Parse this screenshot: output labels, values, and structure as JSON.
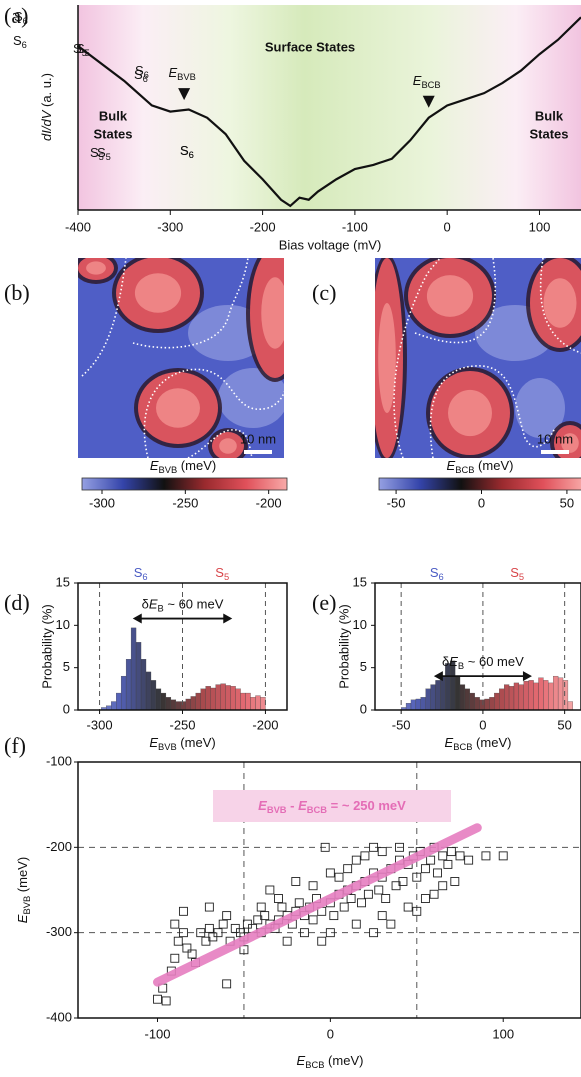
{
  "chart_data": [
    {
      "type": "line",
      "panel": "(a)",
      "x": [
        -400,
        -350,
        -320,
        -300,
        -280,
        -260,
        -240,
        -220,
        -200,
        -180,
        -170,
        -160,
        -150,
        -140,
        -120,
        -100,
        -80,
        -60,
        -40,
        -20,
        0,
        20,
        40,
        60,
        80,
        100,
        120,
        145
      ],
      "values": [
        0.8,
        0.63,
        0.51,
        0.48,
        0.49,
        0.45,
        0.37,
        0.24,
        0.15,
        0.05,
        0.02,
        0.06,
        0.05,
        0.09,
        0.15,
        0.2,
        0.22,
        0.25,
        0.34,
        0.45,
        0.51,
        0.54,
        0.57,
        0.62,
        0.68,
        0.76,
        0.83,
        0.94
      ],
      "color": "#111111",
      "xlim": [
        -400,
        145
      ],
      "ylim": [
        0,
        1
      ],
      "xticks": [
        -400,
        -300,
        -200,
        -100,
        0,
        100
      ],
      "xlabel": "Bias voltage (mV)",
      "ylabel": [
        {
          "i": "dI/dV"
        },
        {
          "t": " (a. u.)"
        }
      ],
      "surface_label": "Surface States",
      "bulk_label_left": [
        "Bulk",
        "States"
      ],
      "bulk_label_right": [
        "Bulk",
        "States"
      ],
      "markers": [
        {
          "x": -285,
          "label": [
            {
              "i": "E"
            },
            {
              "sub": "BVB"
            }
          ]
        },
        {
          "x": -20,
          "label": [
            {
              "i": "E"
            },
            {
              "sub": "BCB"
            }
          ]
        }
      ]
    },
    {
      "type": "map",
      "panel": "(b)",
      "labels": [
        [
          {
            "t": "S"
          },
          {
            "sub": "6"
          }
        ],
        [
          {
            "t": "S"
          },
          {
            "sub": "5"
          }
        ],
        [
          {
            "t": "S"
          },
          {
            "sub": "6"
          }
        ],
        [
          {
            "t": "S"
          },
          {
            "sub": "5"
          }
        ],
        [
          {
            "t": "S"
          },
          {
            "sub": "6"
          }
        ]
      ],
      "scalebar": "10 nm",
      "colorbar_label": [
        {
          "i": "E"
        },
        {
          "sub": "BVB"
        },
        {
          "t": " (meV)"
        }
      ],
      "clim": [
        -312,
        -189
      ],
      "cticks": [
        -300,
        -250,
        -200
      ],
      "colormap": [
        "#95a0e2",
        "#3444aa",
        "#111111",
        "#9a2a2e",
        "#e0505a",
        "#f8aaa8"
      ]
    },
    {
      "type": "map",
      "panel": "(c)",
      "labels": [
        [
          {
            "t": "S"
          },
          {
            "sub": "6"
          }
        ],
        [
          {
            "t": "S"
          },
          {
            "sub": "5"
          }
        ],
        [
          {
            "t": "S"
          },
          {
            "sub": "6"
          }
        ],
        [
          {
            "t": "S"
          },
          {
            "sub": "5"
          }
        ],
        [
          {
            "t": "S"
          },
          {
            "sub": "6"
          }
        ]
      ],
      "scalebar": "10 nm",
      "colorbar_label": [
        {
          "i": "E"
        },
        {
          "sub": "BCB"
        },
        {
          "t": " (meV)"
        }
      ],
      "clim": [
        -60,
        60
      ],
      "cticks": [
        -50,
        0,
        50
      ],
      "colormap": [
        "#95a0e2",
        "#3444aa",
        "#111111",
        "#9a2a2e",
        "#e0505a",
        "#f8aaa8"
      ]
    },
    {
      "type": "histogram",
      "panel": "(d)",
      "bins": [
        -299,
        -296,
        -293,
        -290,
        -287,
        -284,
        -281,
        -278,
        -275,
        -272,
        -269,
        -266,
        -263,
        -260,
        -257,
        -254,
        -251,
        -248,
        -245,
        -242,
        -239,
        -236,
        -233,
        -230,
        -227,
        -224,
        -221,
        -218,
        -215,
        -212,
        -209,
        -206,
        -203,
        -200
      ],
      "values": [
        0.3,
        0.5,
        1,
        2,
        4,
        6,
        9.7,
        8,
        6,
        4.5,
        3.5,
        2.5,
        2,
        1.5,
        1.2,
        1,
        1,
        1.3,
        1.6,
        2,
        2.5,
        2.8,
        2.6,
        3,
        3.1,
        2.9,
        2.8,
        2.5,
        2,
        2,
        1.5,
        1.7,
        1.5
      ],
      "xlim": [
        -313,
        -187
      ],
      "ylim": [
        0,
        15
      ],
      "xticks": [
        -300,
        -250,
        -200
      ],
      "yticks": [
        0,
        5,
        10,
        15
      ],
      "vlines": [
        -300,
        -250,
        -200
      ],
      "arrow": [
        -280,
        -220
      ],
      "arrow_label": [
        {
          "t": "δ"
        },
        {
          "i": "E"
        },
        {
          "sub": "B"
        },
        {
          "t": " ~ 60 meV"
        }
      ],
      "groups": [
        {
          "label": [
            {
              "t": "S"
            },
            {
              "sub": "6"
            }
          ],
          "color": "#4a5bc4"
        },
        {
          "label": [
            {
              "t": "S"
            },
            {
              "sub": "5"
            }
          ],
          "color": "#d8464a"
        }
      ],
      "xlabel": [
        {
          "i": "E"
        },
        {
          "sub": "BVB"
        },
        {
          "t": " (meV)"
        }
      ],
      "ylabel": "Probability (%)",
      "colormap": [
        "#95a0e2",
        "#3444aa",
        "#111111",
        "#9a2a2e",
        "#e0505a",
        "#f8aaa8"
      ]
    },
    {
      "type": "histogram",
      "panel": "(e)",
      "bins": [
        -50,
        -47,
        -44,
        -41,
        -38,
        -35,
        -32,
        -29,
        -26,
        -23,
        -20,
        -17,
        -14,
        -11,
        -8,
        -5,
        -2,
        1,
        4,
        7,
        10,
        13,
        16,
        19,
        22,
        25,
        28,
        31,
        34,
        37,
        40,
        43,
        46,
        49,
        52,
        55
      ],
      "values": [
        0.3,
        0.8,
        1.2,
        1.3,
        1.5,
        2.5,
        3,
        3.5,
        4,
        5.5,
        5.8,
        4,
        3,
        2.5,
        2,
        1.5,
        1.2,
        1.3,
        1.5,
        2,
        2.5,
        3,
        2.8,
        3.2,
        3,
        3.4,
        3.5,
        3.2,
        3.8,
        3.5,
        3.2,
        4,
        3.8,
        3.5,
        1
      ],
      "xlim": [
        -66,
        60
      ],
      "ylim": [
        0,
        15
      ],
      "xticks": [
        -50,
        0,
        50
      ],
      "yticks": [
        0,
        5,
        10,
        15
      ],
      "vlines": [
        -50,
        0,
        50
      ],
      "arrow": [
        -30,
        30
      ],
      "arrow_label": [
        {
          "t": "δ"
        },
        {
          "i": "E"
        },
        {
          "sub": "B"
        },
        {
          "t": " ~ 60 meV"
        }
      ],
      "groups": [
        {
          "label": [
            {
              "t": "S"
            },
            {
              "sub": "6"
            }
          ],
          "color": "#4a5bc4"
        },
        {
          "label": [
            {
              "t": "S"
            },
            {
              "sub": "5"
            }
          ],
          "color": "#d8464a"
        }
      ],
      "xlabel": [
        {
          "i": "E"
        },
        {
          "sub": "BCB"
        },
        {
          "t": " (meV)"
        }
      ],
      "ylabel": "Probability (%)",
      "colormap": [
        "#95a0e2",
        "#3444aa",
        "#111111",
        "#9a2a2e",
        "#e0505a",
        "#f8aaa8"
      ]
    },
    {
      "type": "scatter",
      "panel": "(f)",
      "x": [
        -100,
        -95,
        -97,
        -92,
        -90,
        -88,
        -85,
        -83,
        -80,
        -78,
        -75,
        -72,
        -70,
        -68,
        -65,
        -62,
        -60,
        -58,
        -55,
        -52,
        -50,
        -48,
        -45,
        -42,
        -40,
        -38,
        -35,
        -32,
        -30,
        -28,
        -25,
        -22,
        -20,
        -18,
        -15,
        -12,
        -10,
        -8,
        -5,
        -3,
        0,
        2,
        5,
        8,
        10,
        12,
        15,
        18,
        20,
        22,
        25,
        28,
        30,
        32,
        35,
        38,
        40,
        42,
        45,
        48,
        50,
        52,
        55,
        58,
        60,
        62,
        65,
        68,
        70,
        72,
        75,
        -20,
        -10,
        0,
        10,
        20,
        30,
        40,
        -30,
        -15,
        0,
        15,
        30,
        45,
        55,
        -40,
        -60,
        -70,
        -85,
        -90,
        100,
        90,
        80,
        -5,
        25,
        35,
        50,
        60,
        -50,
        -25,
        5,
        15,
        25,
        -35,
        65
      ],
      "y": [
        -378,
        -380,
        -365,
        -345,
        -330,
        -310,
        -300,
        -318,
        -325,
        -335,
        -300,
        -310,
        -295,
        -305,
        -300,
        -290,
        -360,
        -310,
        -295,
        -300,
        -305,
        -290,
        -295,
        -285,
        -300,
        -280,
        -290,
        -295,
        -285,
        -270,
        -280,
        -290,
        -275,
        -265,
        -280,
        -270,
        -285,
        -260,
        -275,
        -200,
        -265,
        -280,
        -255,
        -270,
        -250,
        -260,
        -245,
        -265,
        -240,
        -255,
        -230,
        -250,
        -235,
        -260,
        -225,
        -245,
        -215,
        -240,
        -220,
        -210,
        -235,
        -205,
        -225,
        -215,
        -200,
        -230,
        -210,
        -220,
        -205,
        -240,
        -210,
        -240,
        -245,
        -230,
        -225,
        -210,
        -205,
        -200,
        -260,
        -300,
        -300,
        -290,
        -280,
        -270,
        -260,
        -270,
        -280,
        -270,
        -275,
        -290,
        -210,
        -210,
        -215,
        -310,
        -300,
        -290,
        -275,
        -255,
        -320,
        -310,
        -235,
        -215,
        -200,
        -250,
        -245
      ],
      "color": "#222222",
      "xlim": [
        -146,
        145
      ],
      "ylim": [
        -400,
        -100
      ],
      "xticks": [
        -100,
        0,
        100
      ],
      "yticks": [
        -100,
        -200,
        -300,
        -400
      ],
      "grid_x": [
        -50,
        50
      ],
      "grid_y": [
        -300,
        -200
      ],
      "fit": {
        "x": [
          -100,
          85
        ],
        "y": [
          -358,
          -177
        ],
        "color": "#e67ec0"
      },
      "annotation": [
        {
          "i": "E"
        },
        {
          "sub": "BVB"
        },
        {
          "t": " - "
        },
        {
          "i": "E"
        },
        {
          "sub": "BCB"
        },
        {
          "t": " = ~ 250 meV"
        }
      ],
      "xlabel": [
        {
          "i": "E"
        },
        {
          "sub": "BCB"
        },
        {
          "t": " (meV)"
        }
      ],
      "ylabel": [
        {
          "i": "E"
        },
        {
          "sub": "BVB"
        },
        {
          "t": " (meV)"
        }
      ]
    }
  ]
}
